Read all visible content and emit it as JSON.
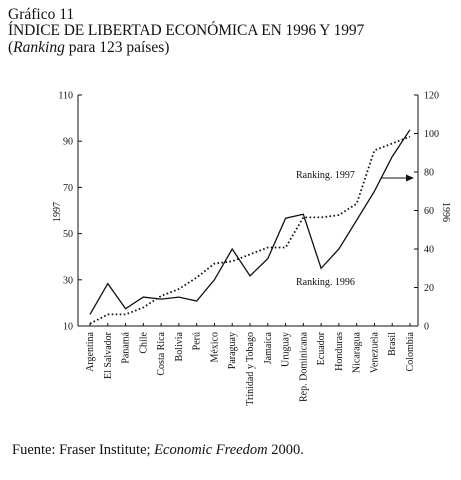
{
  "header": {
    "line1": "Gráfico 11",
    "line2": "ÍNDICE DE LIBERTAD ECONÓMICA EN 1996 Y 1997",
    "line3_paren_open": "(",
    "line3_italic": "Ranking",
    "line3_rest": " para 123 países)"
  },
  "source": {
    "prefix": "Fuente: Fraser Institute; ",
    "italic": "Economic Freedom",
    "suffix": " 2000."
  },
  "chart_data": {
    "type": "line",
    "categories": [
      "Argentina",
      "El Salvador",
      "Panamá",
      "Chile",
      "Costa Rica",
      "Bolivia",
      "Perú",
      "México",
      "Paraguay",
      "Trinidad y Tobago",
      "Jamaica",
      "Uruguay",
      "Rep. Dominicana",
      "Ecuador",
      "Honduras",
      "Nicaragua",
      "Venezuela",
      "Brasil",
      "Colombia"
    ],
    "left_axis": {
      "label": "1997",
      "ylim": [
        10,
        110
      ],
      "ticks": [
        10,
        30,
        50,
        70,
        90,
        110
      ]
    },
    "right_axis": {
      "label": "1996",
      "ylim": [
        0,
        120
      ],
      "ticks": [
        0,
        20,
        40,
        60,
        80,
        100,
        120
      ]
    },
    "series": [
      {
        "name": "Ranking. 1996",
        "axis": "right",
        "style": "solid",
        "values": [
          6,
          22,
          9,
          15,
          14,
          15,
          13,
          24,
          40,
          26,
          35,
          56,
          58,
          30,
          40,
          55,
          70,
          88,
          102
        ]
      },
      {
        "name": "Ranking. 1997",
        "axis": "left",
        "style": "dotted",
        "values": [
          11,
          15,
          15,
          18,
          23,
          26,
          31,
          37,
          38,
          41,
          44,
          44,
          57,
          57,
          58,
          63,
          86,
          89,
          92
        ]
      }
    ],
    "annotations": [
      {
        "text": "Ranking. 1997",
        "arrow": "right"
      },
      {
        "text": "Ranking. 1996"
      }
    ],
    "grid": false
  }
}
